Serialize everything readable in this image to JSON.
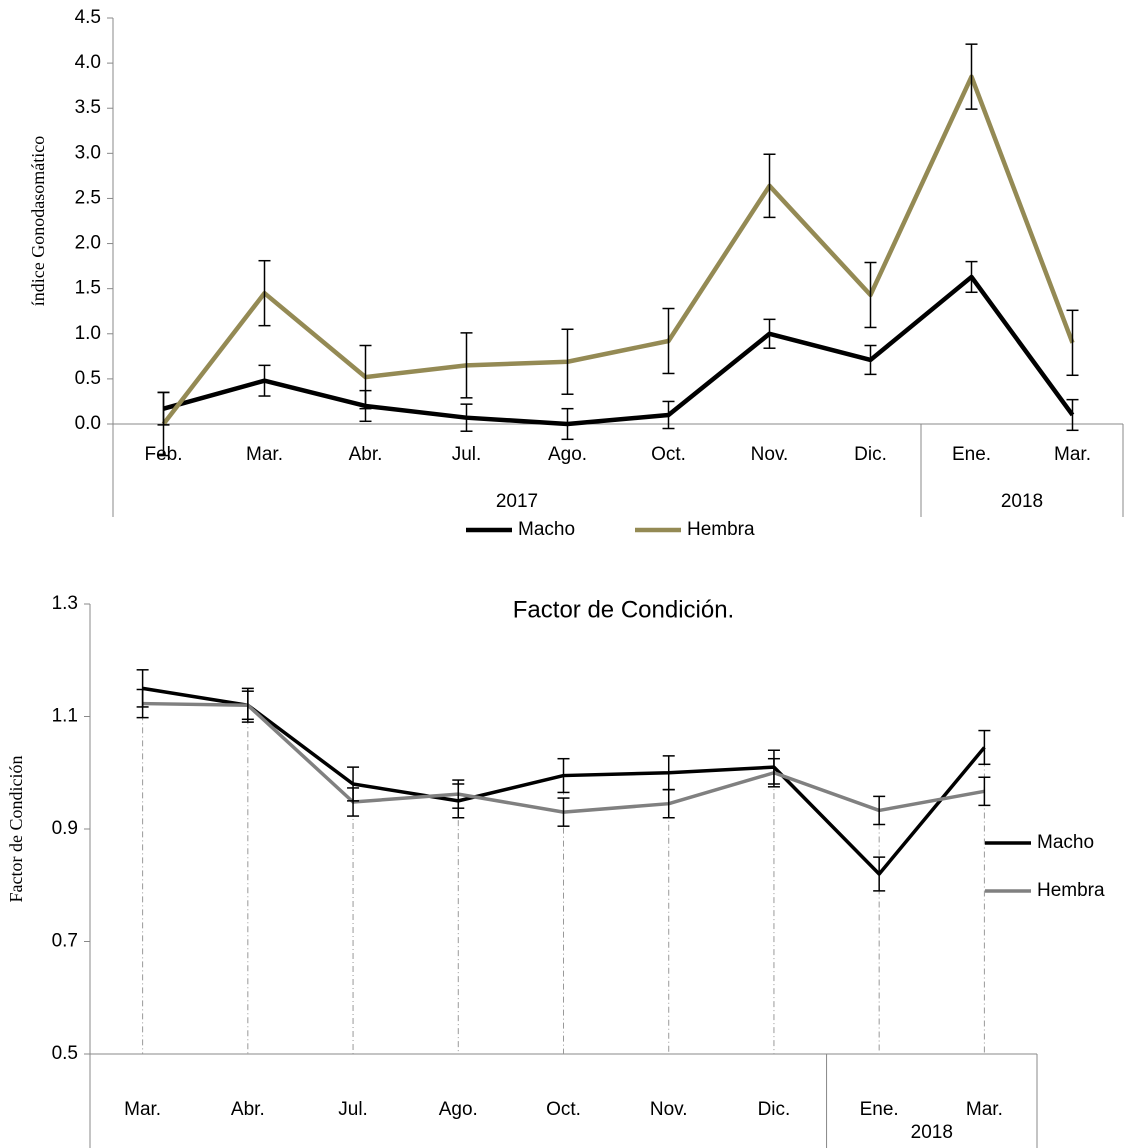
{
  "chart_data": [
    {
      "type": "line",
      "y_label": "índice Gonodasomático",
      "categories": [
        "Feb.",
        "Mar.",
        "Abr.",
        "Jul.",
        "Ago.",
        "Oct.",
        "Nov.",
        "Dic.",
        "Ene.",
        "Mar."
      ],
      "groups": [
        {
          "label": "2017",
          "count": 8
        },
        {
          "label": "2018",
          "count": 2
        }
      ],
      "series": [
        {
          "name": "Macho",
          "color": "#000000",
          "values": [
            0.17,
            0.48,
            0.2,
            0.07,
            0.0,
            0.1,
            1.0,
            0.71,
            1.63,
            0.1
          ],
          "errors": [
            0.18,
            0.17,
            0.17,
            0.15,
            0.17,
            0.15,
            0.16,
            0.16,
            0.17,
            0.17
          ]
        },
        {
          "name": "Hembra",
          "color": "#948a54",
          "values": [
            0.0,
            1.45,
            0.52,
            0.65,
            0.69,
            0.92,
            2.64,
            1.43,
            3.85,
            0.9
          ],
          "errors": [
            0.35,
            0.36,
            0.35,
            0.36,
            0.36,
            0.36,
            0.35,
            0.36,
            0.36,
            0.36
          ]
        }
      ],
      "ylim": [
        0,
        4.5
      ],
      "yticks": [
        {
          "value": 0,
          "label": "0.0"
        },
        0.5,
        {
          "value": 1,
          "label": "1.0"
        },
        1.5,
        {
          "value": 2,
          "label": "2.0"
        },
        2.5,
        {
          "value": 3,
          "label": "3.0"
        },
        3.5,
        {
          "value": 4,
          "label": "4.0"
        },
        4.5
      ],
      "legend": "bottom",
      "grid": false,
      "drop_lines": false
    },
    {
      "type": "line",
      "title": "Factor de Condición.",
      "y_label": "Factor de Condición",
      "categories": [
        "Mar.",
        "Abr.",
        "Jul.",
        "Ago.",
        "Oct.",
        "Nov.",
        "Dic.",
        "Ene.",
        "Mar."
      ],
      "groups": [
        {
          "label": null,
          "count": 7
        },
        {
          "label": "2018",
          "count": 2
        }
      ],
      "series": [
        {
          "name": "Macho",
          "color": "#000000",
          "values": [
            1.15,
            1.12,
            0.98,
            0.95,
            0.995,
            1.0,
            1.01,
            0.82,
            1.045
          ],
          "errors": [
            0.033,
            0.03,
            0.03,
            0.03,
            0.03,
            0.03,
            0.03,
            0.03,
            0.03
          ]
        },
        {
          "name": "Hembra",
          "color": "#808080",
          "values": [
            1.123,
            1.12,
            0.948,
            0.962,
            0.93,
            0.945,
            1.0,
            0.933,
            0.967
          ],
          "errors": [
            0.025,
            0.025,
            0.025,
            0.025,
            0.025,
            0.025,
            0.025,
            0.025,
            0.025
          ]
        }
      ],
      "ylim": [
        0.5,
        1.3
      ],
      "yticks": [
        0.5,
        0.7,
        0.9,
        1.1,
        1.3
      ],
      "legend": "right",
      "grid": false,
      "drop_lines": true
    }
  ]
}
